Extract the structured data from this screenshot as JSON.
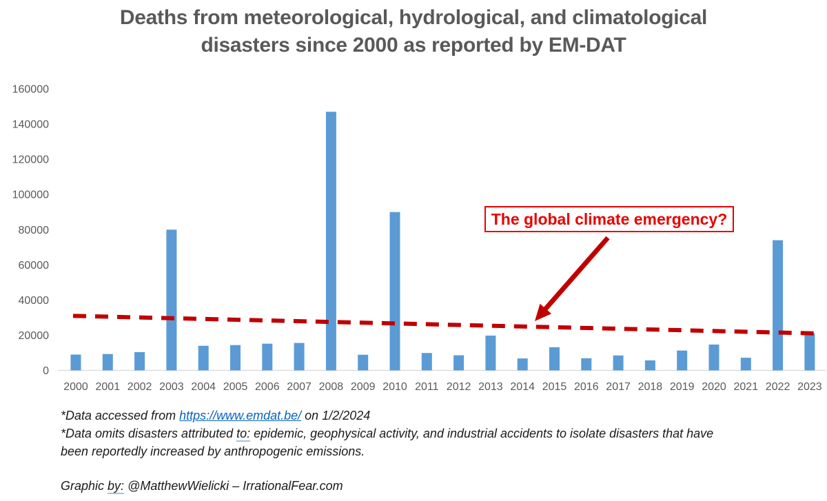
{
  "title": {
    "line1": "Deaths from meteorological, hydrological, and climatological",
    "line2": "disasters since 2000 as reported by EM-DAT"
  },
  "chart_data": {
    "type": "bar",
    "title": "Deaths from meteorological, hydrological, and climatological disasters since 2000 as reported by EM-DAT",
    "categories": [
      "2000",
      "2001",
      "2002",
      "2003",
      "2004",
      "2005",
      "2006",
      "2007",
      "2008",
      "2009",
      "2010",
      "2011",
      "2012",
      "2013",
      "2014",
      "2015",
      "2016",
      "2017",
      "2018",
      "2019",
      "2020",
      "2021",
      "2022",
      "2023"
    ],
    "values": [
      9000,
      9300,
      10400,
      80000,
      14000,
      14400,
      15200,
      15600,
      147000,
      8900,
      90000,
      9900,
      8600,
      19800,
      6800,
      13200,
      6900,
      8500,
      5700,
      11300,
      14700,
      7200,
      74000,
      21000
    ],
    "xlabel": "",
    "ylabel": "",
    "ylim": [
      0,
      160000
    ],
    "yticks": [
      0,
      20000,
      40000,
      60000,
      80000,
      100000,
      120000,
      140000,
      160000
    ],
    "grid": "baseline-only",
    "legend": "none",
    "bar_color": "#5B9BD5",
    "trendline": {
      "style": "dashed",
      "color": "#C00000",
      "start_value": 31000,
      "end_value": 21000
    },
    "annotation": {
      "text": "The global climate emergency?",
      "text_color": "#E90000",
      "border_color": "#E90000",
      "arrow_color": "#C00000",
      "arrow_points_to": "trendline near 2014"
    }
  },
  "colors": {
    "title": "#595959",
    "axis_labels": "#595959",
    "baseline": "#D9D9D9",
    "bar": "#5B9BD5",
    "trend": "#C00000",
    "annotation_red": "#E90000",
    "link_blue": "#0563C1",
    "footnote_underline": "#9DC3E6"
  },
  "footnotes": {
    "source": {
      "prefix": "*Data accessed from ",
      "link_text": "https://www.emdat.be/",
      "suffix": " on 1/2/2024"
    },
    "omits_line1": {
      "part1": "*Data omits disasters attributed ",
      "underlined": "to:",
      "part2": " epidemic, geophysical activity, and industrial accidents to isolate disasters that have"
    },
    "omits_line2": "been reportedly increased by anthropogenic emissions.",
    "credit": {
      "part1": "Graphic ",
      "underlined": "by:",
      "part2": " @MatthewWielicki – IrrationalFear.com"
    }
  }
}
